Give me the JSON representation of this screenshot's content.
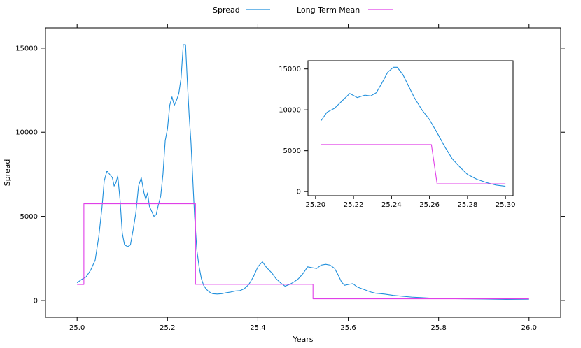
{
  "chart_data": [
    {
      "type": "line",
      "xlabel": "Years",
      "ylabel": "Spread",
      "xlim": [
        24.93,
        26.07
      ],
      "ylim": [
        -1000,
        16200
      ],
      "xticks": [
        25.0,
        25.2,
        25.4,
        25.6,
        25.8,
        26.0
      ],
      "xtick_labels": [
        "25.0",
        "25.2",
        "25.4",
        "25.6",
        "25.8",
        "26.0"
      ],
      "yticks": [
        0,
        5000,
        10000,
        15000
      ],
      "ytick_labels": [
        "0",
        "5000",
        "10000",
        "15000"
      ],
      "legend": {
        "position": "top",
        "entries": [
          "Spread",
          "Long Term Mean"
        ]
      },
      "grid": false,
      "series": [
        {
          "name": "Spread",
          "color": "#1f8fdc",
          "x": [
            25.0,
            25.01,
            25.02,
            25.03,
            25.04,
            25.048,
            25.055,
            25.06,
            25.066,
            25.072,
            25.078,
            25.082,
            25.086,
            25.09,
            25.095,
            25.1,
            25.105,
            25.112,
            25.118,
            25.124,
            25.13,
            25.136,
            25.142,
            25.148,
            25.152,
            25.156,
            25.16,
            25.165,
            25.17,
            25.175,
            25.18,
            25.185,
            25.19,
            25.195,
            25.2,
            25.205,
            25.21,
            25.215,
            25.22,
            25.225,
            25.23,
            25.235,
            25.24,
            25.244,
            25.248,
            25.252,
            25.256,
            25.26,
            25.265,
            25.27,
            25.275,
            25.28,
            25.285,
            25.29,
            25.295,
            25.3,
            25.31,
            25.32,
            25.33,
            25.34,
            25.35,
            25.36,
            25.37,
            25.38,
            25.39,
            25.4,
            25.41,
            25.418,
            25.425,
            25.432,
            25.44,
            25.45,
            25.46,
            25.47,
            25.48,
            25.49,
            25.5,
            25.51,
            25.52,
            25.53,
            25.54,
            25.55,
            25.56,
            25.57,
            25.578,
            25.585,
            25.592,
            25.6,
            25.61,
            25.62,
            25.63,
            25.64,
            25.65,
            25.66,
            25.68,
            25.7,
            25.72,
            25.74,
            25.76,
            25.78,
            25.8,
            25.85,
            25.9,
            25.95,
            26.0
          ],
          "values": [
            1050,
            1250,
            1400,
            1800,
            2400,
            3800,
            5500,
            7100,
            7700,
            7500,
            7300,
            6800,
            7000,
            7400,
            6000,
            4000,
            3300,
            3200,
            3300,
            4200,
            5200,
            6800,
            7300,
            6400,
            6000,
            6400,
            5600,
            5300,
            5000,
            5100,
            5700,
            6200,
            7500,
            9500,
            10200,
            11600,
            12100,
            11600,
            11900,
            12300,
            13200,
            15200,
            15200,
            13000,
            11000,
            9400,
            7200,
            5000,
            3000,
            2000,
            1300,
            900,
            700,
            560,
            460,
            400,
            380,
            400,
            460,
            500,
            560,
            580,
            700,
            950,
            1400,
            2000,
            2300,
            2000,
            1800,
            1600,
            1300,
            1050,
            850,
            950,
            1100,
            1300,
            1600,
            2000,
            1950,
            1900,
            2100,
            2150,
            2100,
            1900,
            1500,
            1100,
            900,
            950,
            1000,
            800,
            700,
            600,
            500,
            430,
            380,
            300,
            250,
            200,
            170,
            140,
            120,
            100,
            80,
            60,
            40
          ]
        },
        {
          "name": "Long Term Mean",
          "color": "#e040e8",
          "x": [
            25.0,
            25.015,
            25.015,
            25.262,
            25.262,
            25.522,
            25.522,
            26.0
          ],
          "values": [
            950,
            950,
            5750,
            5750,
            960,
            960,
            100,
            100
          ]
        }
      ]
    },
    {
      "type": "line",
      "xlabel": "",
      "ylabel": "",
      "xlim": [
        25.196,
        25.304
      ],
      "ylim": [
        -500,
        16000
      ],
      "xticks": [
        25.2,
        25.22,
        25.24,
        25.26,
        25.28,
        25.3
      ],
      "xtick_labels": [
        "25.20",
        "25.22",
        "25.24",
        "25.26",
        "25.28",
        "25.30"
      ],
      "yticks": [
        0,
        5000,
        10000,
        15000
      ],
      "ytick_labels": [
        "0",
        "5000",
        "10000",
        "15000"
      ],
      "grid": false,
      "series": [
        {
          "color": "#1f8fdc",
          "x": [
            25.203,
            25.206,
            25.21,
            25.214,
            25.218,
            25.222,
            25.226,
            25.229,
            25.232,
            25.235,
            25.238,
            25.241,
            25.243,
            25.246,
            25.249,
            25.252,
            25.256,
            25.26,
            25.264,
            25.268,
            25.272,
            25.276,
            25.28,
            25.285,
            25.29,
            25.295,
            25.3
          ],
          "values": [
            8700,
            9700,
            10200,
            11100,
            12000,
            11500,
            11800,
            11700,
            12100,
            13300,
            14600,
            15200,
            15200,
            14300,
            12900,
            11500,
            10000,
            8800,
            7200,
            5500,
            4000,
            3000,
            2100,
            1500,
            1100,
            800,
            650
          ]
        },
        {
          "color": "#e040e8",
          "x": [
            25.203,
            25.261,
            25.264,
            25.3
          ],
          "values": [
            5750,
            5750,
            950,
            950
          ]
        }
      ]
    }
  ]
}
